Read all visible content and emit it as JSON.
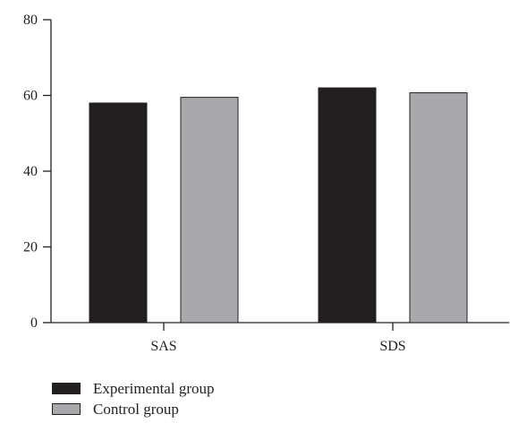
{
  "chart_data": {
    "type": "bar",
    "categories": [
      "SAS",
      "SDS"
    ],
    "series": [
      {
        "name": "Experimental group",
        "color": "#231f20",
        "values": [
          58,
          62
        ]
      },
      {
        "name": "Control group",
        "color": "#a7a9ac",
        "values": [
          59.5,
          60.7
        ]
      }
    ],
    "title": "",
    "xlabel": "",
    "ylabel": "",
    "ylim": [
      0,
      80
    ],
    "yticks": [
      0,
      20,
      40,
      60,
      80
    ],
    "grid": false,
    "legend_position": "bottom-left"
  }
}
